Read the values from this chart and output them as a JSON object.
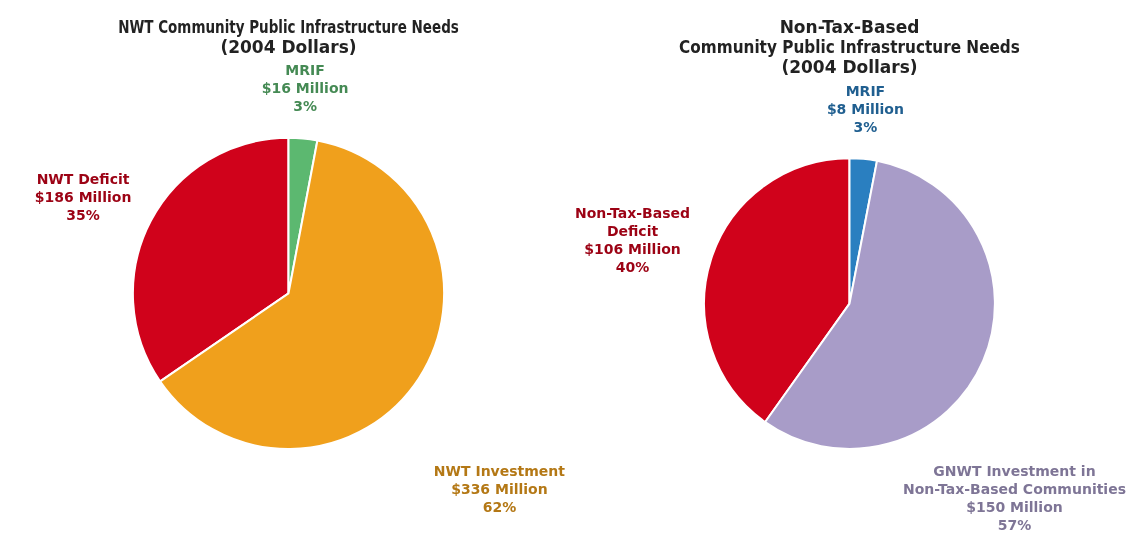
{
  "chart_data": [
    {
      "type": "pie",
      "title": "NWT Community Public Infrastructure Needs\n(2004 Dollars)",
      "categories": [
        "NWT Deficit",
        "MRIF",
        "NWT Investment"
      ],
      "values": [
        186,
        16,
        336
      ],
      "colors": [
        "#d0021b",
        "#5cb870",
        "#f0a01c"
      ],
      "value_labels": [
        "$186 Million\n35%",
        "$16 Million\n3%",
        "$336 Million\n62%"
      ]
    },
    {
      "type": "pie",
      "title": "Non-Tax-Based\nCommunity Public Infrastructure Needs\n(2004 Dollars)",
      "categories": [
        "Non-Tax-Based\nDeficit",
        "MRIF",
        "GNWT Investment in\nNon-Tax-Based Communities"
      ],
      "values": [
        106,
        8,
        150
      ],
      "colors": [
        "#d0021b",
        "#2a7fc0",
        "#a89cc8"
      ],
      "value_labels": [
        "$106 Million\n40%",
        "$8 Million\n3%",
        "$150 Million\n57%"
      ]
    }
  ]
}
